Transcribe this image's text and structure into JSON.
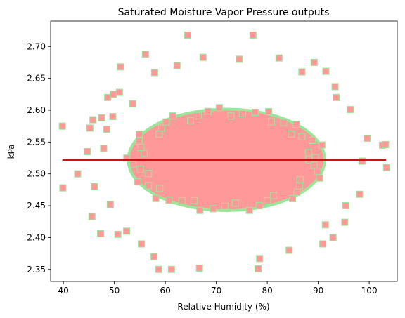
{
  "chart_data": {
    "type": "scatter",
    "title": "Saturated Moisture Vapor Pressure outputs",
    "xlabel": "Relative Humidity (%)",
    "ylabel": "kPa",
    "xlim": [
      37.5,
      105.5
    ],
    "ylim": [
      2.331,
      2.74
    ],
    "xticks": [
      "40",
      "50",
      "60",
      "70",
      "80",
      "90",
      "100"
    ],
    "yticks": [
      "2.35",
      "2.40",
      "2.45",
      "2.50",
      "2.55",
      "2.60",
      "2.65",
      "2.70"
    ],
    "grid": false,
    "point_color": "#ff9999",
    "point_edge_color": "#99e699",
    "line_color": "#cc1111",
    "series": [
      {
        "kind": "points",
        "x": [
          39.8,
          39.9,
          42.8,
          44.7,
          45.2,
          45.6,
          45.8,
          47.3,
          47.5,
          47.9,
          48.5,
          48.7,
          49.2,
          49.8,
          50.7,
          51.0,
          51.2,
          56.1,
          57.9,
          58.7,
          61.2,
          62.3,
          64.4,
          66.7,
          67.4,
          74.5,
          77.2,
          78.2,
          78.5,
          82.3,
          84.3,
          86.8,
          89.2,
          90.9,
          91.5,
          93.3,
          93.5,
          95.2,
          96.3,
          98.1,
          99.6,
          102.6,
          103.2,
          103.4,
          52.4,
          55.3,
          53.6,
          92.9,
          95.4,
          57.8,
          91.4,
          46.1,
          49.7,
          98.6
        ],
        "y": [
          2.575,
          2.478,
          2.5,
          2.535,
          2.572,
          2.433,
          2.585,
          2.406,
          2.588,
          2.54,
          2.57,
          2.62,
          2.452,
          2.625,
          2.405,
          2.628,
          2.668,
          2.688,
          2.659,
          2.35,
          2.35,
          2.67,
          2.718,
          2.352,
          2.683,
          2.68,
          2.718,
          2.351,
          2.367,
          2.682,
          2.38,
          2.66,
          2.675,
          2.39,
          2.661,
          2.637,
          2.62,
          2.424,
          2.601,
          2.468,
          2.556,
          2.545,
          2.546,
          2.51,
          2.41,
          2.39,
          2.61,
          2.4,
          2.45,
          2.37,
          2.42,
          2.48,
          2.59,
          2.52
        ]
      },
      {
        "kind": "line",
        "name": "",
        "x": [
          39.8,
          103.3
        ],
        "y": [
          2.522,
          2.522
        ]
      }
    ]
  }
}
